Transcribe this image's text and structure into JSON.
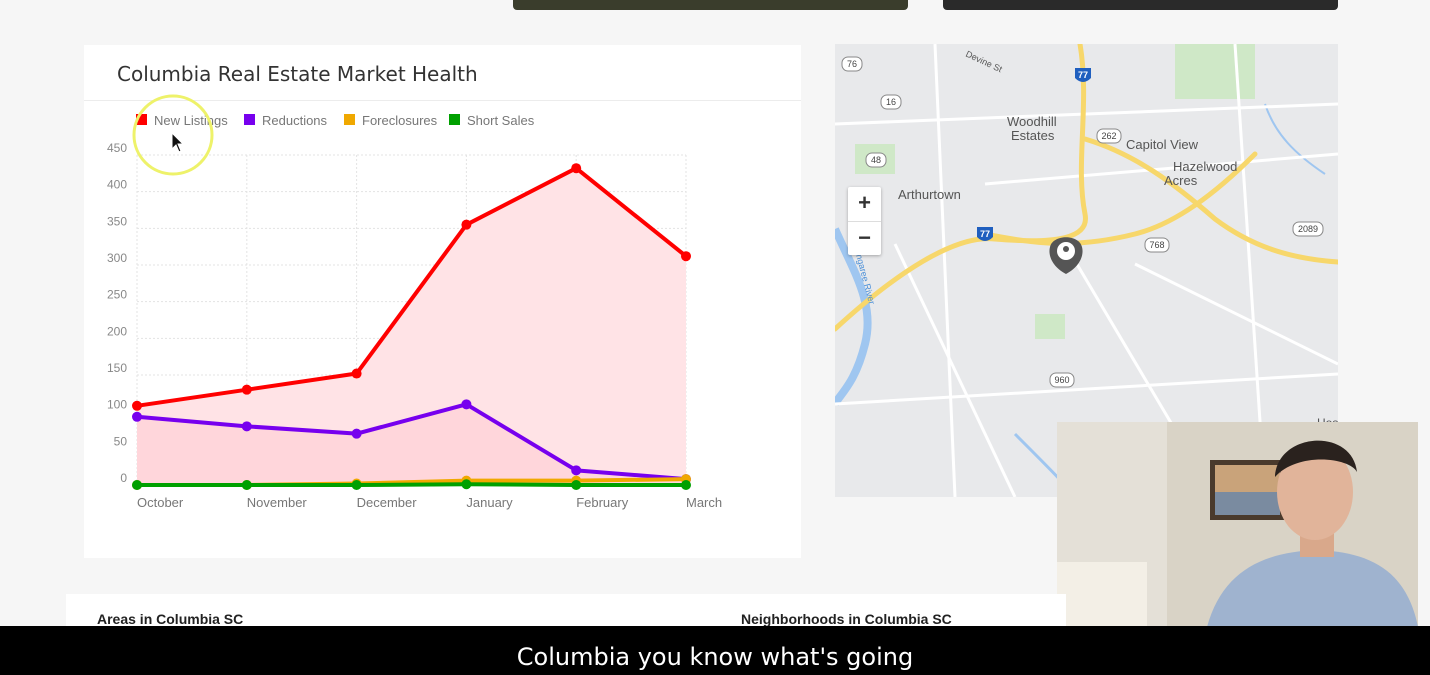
{
  "chart_card": {
    "title": "Columbia Real Estate Market Health"
  },
  "chart_data": {
    "type": "area",
    "categories": [
      "October",
      "November",
      "December",
      "January",
      "February",
      "March"
    ],
    "yticks": [
      "450",
      "400",
      "350",
      "300",
      "250",
      "200",
      "150",
      "100",
      "50",
      "0"
    ],
    "ylim": [
      0,
      450
    ],
    "grid": true,
    "legend_position": "top-left",
    "series": [
      {
        "name": "New Listings",
        "color": "#ff0000",
        "fill": "#ffe3e6",
        "values": [
          108,
          130,
          152,
          355,
          432,
          312
        ]
      },
      {
        "name": "Reductions",
        "color": "#7700ee",
        "fill": "#ffd6db",
        "values": [
          93,
          80,
          70,
          110,
          20,
          8
        ]
      },
      {
        "name": "Foreclosures",
        "color": "#f0a800",
        "values": [
          0,
          0,
          2,
          6,
          6,
          8
        ]
      },
      {
        "name": "Short Sales",
        "color": "#00a000",
        "values": [
          0,
          0,
          0,
          1,
          0,
          0
        ]
      }
    ]
  },
  "map": {
    "labels": [
      "Woodhill",
      "Estates",
      "Capitol View",
      "Hazelwood",
      "Acres",
      "Arthurtown",
      "Devine St",
      "Congaree River",
      "Hos"
    ],
    "route_shields": [
      "76",
      "16",
      "48",
      "262",
      "768",
      "2089",
      "960",
      "77",
      "77"
    ],
    "zoom_in": "+",
    "zoom_out": "−",
    "marker_icon": "map-pin-icon"
  },
  "footer": {
    "areas_heading": "Areas in Columbia SC",
    "neighborhoods_heading": "Neighborhoods in Columbia SC"
  },
  "caption": {
    "text": "Columbia you know what's going"
  }
}
